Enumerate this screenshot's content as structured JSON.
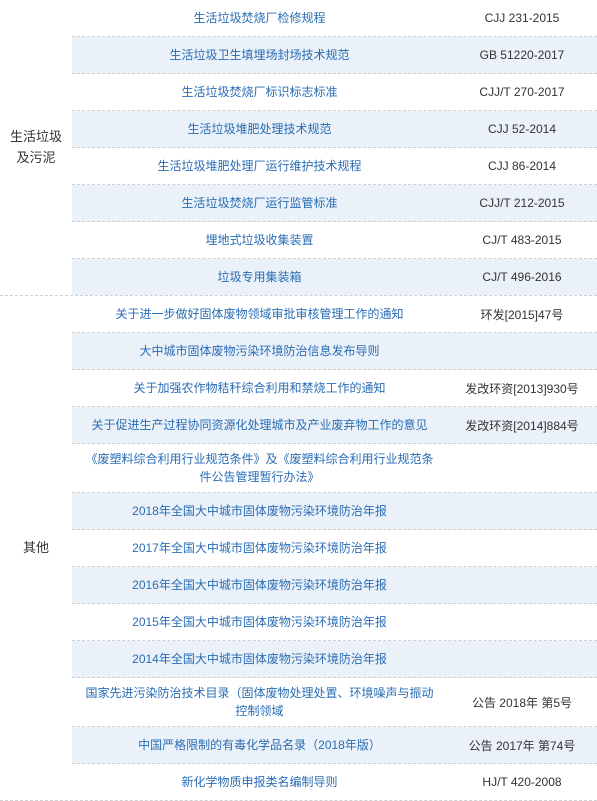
{
  "table": {
    "colors": {
      "link_color": "#2a6db5",
      "text_color": "#333333",
      "alt_row_bg": "#eaf1f8",
      "divider_color": "#d0d0d0",
      "background": "#ffffff"
    },
    "font_sizes": {
      "category": 13,
      "title": 12,
      "code": 12
    },
    "column_widths": {
      "category": 72,
      "title": "flex",
      "code": 150
    },
    "sections": [
      {
        "category": "生活垃圾及污泥",
        "rows": [
          {
            "title": "生活垃圾焚烧厂检修规程",
            "code": "CJJ 231-2015",
            "alt": false
          },
          {
            "title": "生活垃圾卫生填埋场封场技术规范",
            "code": "GB 51220-2017",
            "alt": true
          },
          {
            "title": "生活垃圾焚烧厂标识标志标准",
            "code": "CJJ/T 270-2017",
            "alt": false
          },
          {
            "title": "生活垃圾堆肥处理技术规范",
            "code": "CJJ 52-2014",
            "alt": true
          },
          {
            "title": "生活垃圾堆肥处理厂运行维护技术规程",
            "code": "CJJ 86-2014",
            "alt": false
          },
          {
            "title": "生活垃圾焚烧厂运行监管标准",
            "code": "CJJ/T 212-2015",
            "alt": true
          },
          {
            "title": "埋地式垃圾收集装置",
            "code": "CJ/T 483-2015",
            "alt": false
          },
          {
            "title": "垃圾专用集装箱",
            "code": "CJ/T 496-2016",
            "alt": true
          }
        ]
      },
      {
        "category": "其他",
        "rows": [
          {
            "title": "关于进一步做好固体废物领域审批审核管理工作的通知",
            "code": "环发[2015]47号",
            "alt": false
          },
          {
            "title": "大中城市固体废物污染环境防治信息发布导则",
            "code": "",
            "alt": true
          },
          {
            "title": "关于加强农作物秸秆综合利用和禁烧工作的通知",
            "code": "发改环资[2013]930号",
            "alt": false
          },
          {
            "title": "关于促进生产过程协同资源化处理城市及产业废弃物工作的意见",
            "code": "发改环资[2014]884号",
            "alt": true
          },
          {
            "title": "《废塑料综合利用行业规范条件》及《废塑料综合利用行业规范条件公告管理暂行办法》",
            "code": "",
            "alt": false
          },
          {
            "title": "2018年全国大中城市固体废物污染环境防治年报",
            "code": "",
            "alt": true
          },
          {
            "title": "2017年全国大中城市固体废物污染环境防治年报",
            "code": "",
            "alt": false
          },
          {
            "title": "2016年全国大中城市固体废物污染环境防治年报",
            "code": "",
            "alt": true
          },
          {
            "title": "2015年全国大中城市固体废物污染环境防治年报",
            "code": "",
            "alt": false
          },
          {
            "title": "2014年全国大中城市固体废物污染环境防治年报",
            "code": "",
            "alt": true
          },
          {
            "title": "国家先进污染防治技术目录（固体废物处理处置、环境噪声与振动控制领域",
            "code": "公告 2018年 第5号",
            "alt": false
          },
          {
            "title": "中国严格限制的有毒化学品名录（2018年版）",
            "code": "公告 2017年 第74号",
            "alt": true
          },
          {
            "title": "新化学物质申报类名编制导则",
            "code": "HJ/T 420-2008",
            "alt": false
          }
        ]
      }
    ]
  }
}
